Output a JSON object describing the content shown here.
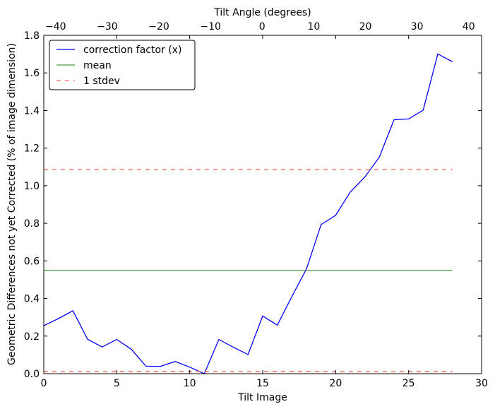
{
  "chart_data": {
    "type": "line",
    "xlabel": "Tilt Image",
    "ylabel": "Geometric Differences not yet Corrected (% of image dimension)",
    "x2label": "Tilt Angle (degrees)",
    "xlim": [
      0,
      30
    ],
    "ylim": [
      0,
      1.8
    ],
    "x2lim": [
      -42.3,
      42.5
    ],
    "xticks": [
      0,
      5,
      10,
      15,
      20,
      25,
      30
    ],
    "yticks": [
      0.0,
      0.2,
      0.4,
      0.6,
      0.8,
      1.0,
      1.2,
      1.4,
      1.6,
      1.8
    ],
    "x2ticks": [
      -40,
      -30,
      -20,
      -10,
      0,
      10,
      20,
      30,
      40
    ],
    "grid": false,
    "legend_position": "top-left",
    "series": [
      {
        "name": "correction factor (x)",
        "color": "#0000ff",
        "style": "solid",
        "x": [
          0,
          1,
          2,
          3,
          4,
          5,
          6,
          7,
          8,
          9,
          10,
          11,
          12,
          13,
          14,
          15,
          16,
          17,
          18,
          19,
          20,
          21,
          22,
          23,
          24,
          25,
          26,
          27,
          28
        ],
        "values": [
          0.255,
          0.293,
          0.335,
          0.183,
          0.142,
          0.182,
          0.13,
          0.04,
          0.039,
          0.065,
          0.035,
          0.0,
          0.182,
          0.14,
          0.102,
          0.307,
          0.258,
          0.41,
          0.557,
          0.793,
          0.842,
          0.966,
          1.046,
          1.153,
          1.351,
          1.355,
          1.402,
          1.701,
          1.659
        ]
      },
      {
        "name": "mean",
        "color": "#4a9a4a",
        "style": "solid",
        "x": [
          0,
          28
        ],
        "values": [
          0.55,
          0.55
        ]
      },
      {
        "name": "1 stdev",
        "color": "#ff6666",
        "style": "dashed",
        "x": [
          0,
          28
        ],
        "values": [
          1.085,
          1.085
        ]
      },
      {
        "name": "1 stdev lower",
        "color": "#ff6666",
        "style": "dashed",
        "x": [
          0,
          28
        ],
        "values": [
          0.012,
          0.012
        ],
        "legend": false
      }
    ]
  }
}
